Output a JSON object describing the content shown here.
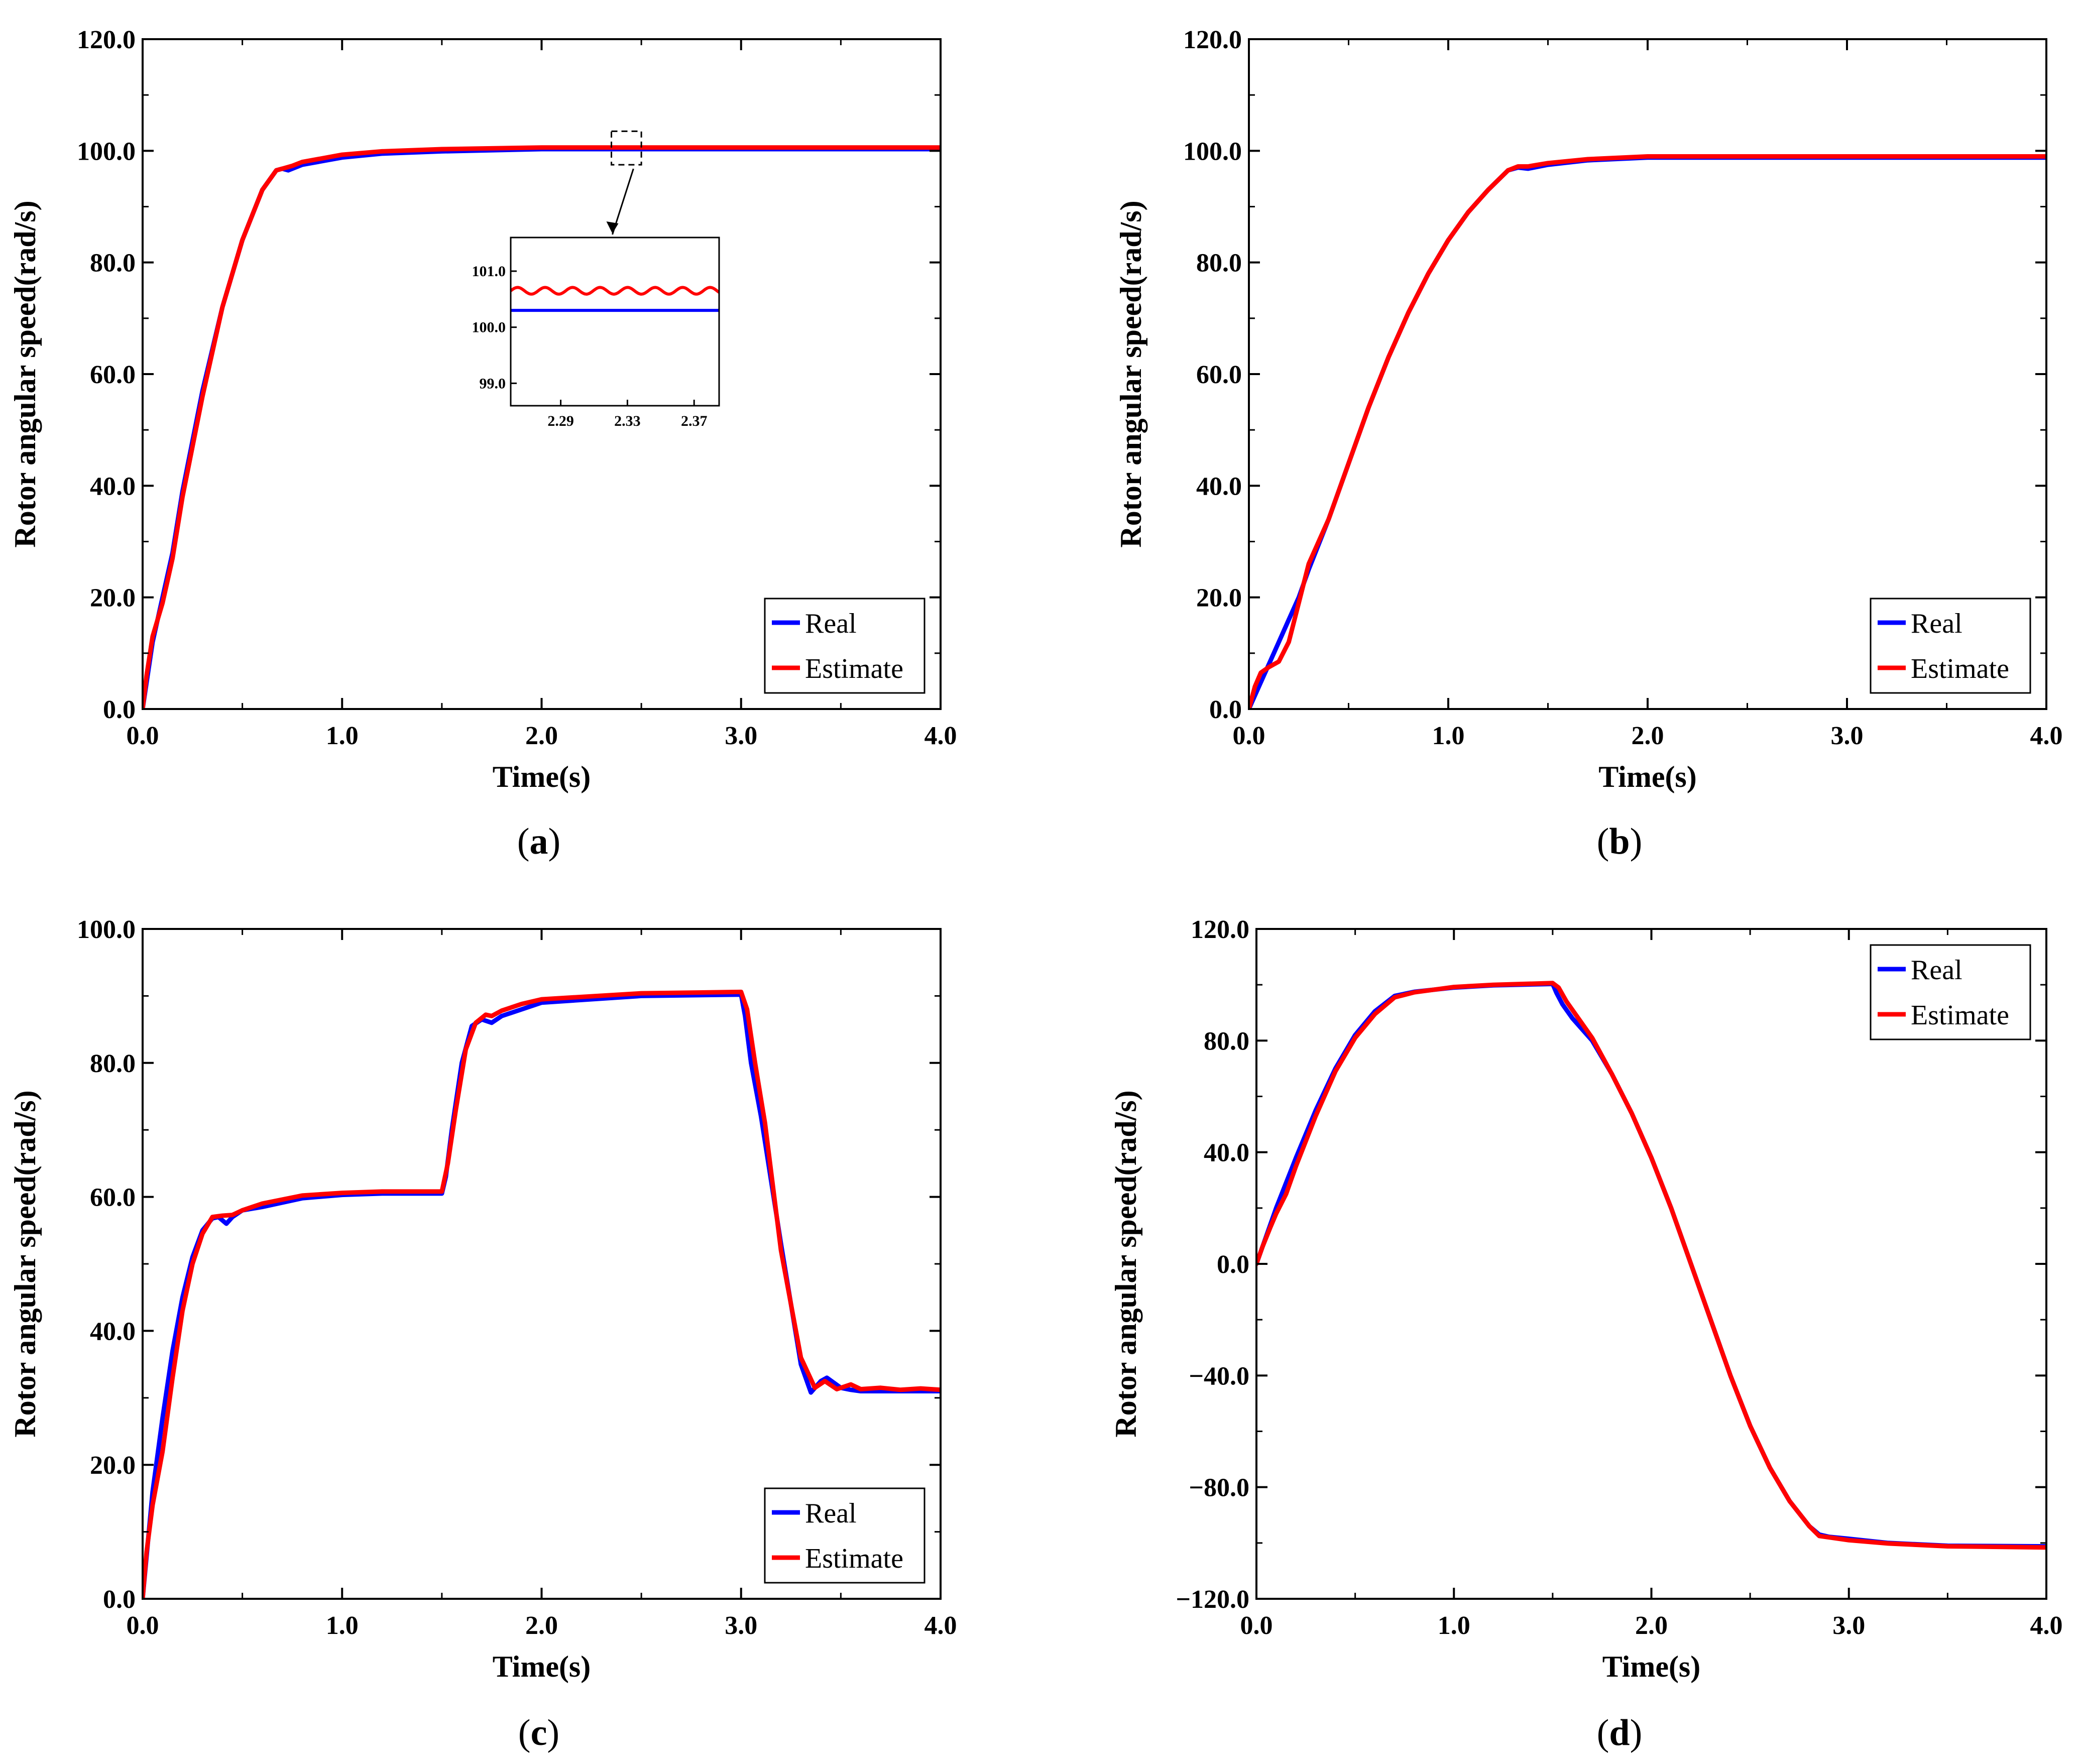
{
  "figure": {
    "colors": {
      "real": "#0000ff",
      "estimate": "#ff0000",
      "axis": "#000000"
    }
  },
  "chart_data": [
    {
      "id": "a",
      "type": "line",
      "caption": "a",
      "xlabel": "Time(s)",
      "ylabel": "Rotor angular speed(rad/s)",
      "xlim": [
        0,
        4
      ],
      "ylim": [
        0,
        120
      ],
      "xticks": [
        0,
        1,
        2,
        3,
        4
      ],
      "xtick_labels": [
        "0.0",
        "1.0",
        "2.0",
        "3.0",
        "4.0"
      ],
      "yticks": [
        0,
        20,
        40,
        60,
        80,
        100,
        120
      ],
      "ytick_labels": [
        "0.0",
        "20.0",
        "40.0",
        "60.0",
        "80.0",
        "100.0",
        "120.0"
      ],
      "legend": {
        "position": "bottom-right",
        "entries": [
          "Real",
          "Estimate"
        ]
      },
      "series": [
        {
          "name": "Real",
          "color": "#0000ff",
          "x": [
            0,
            0.05,
            0.1,
            0.15,
            0.2,
            0.3,
            0.4,
            0.5,
            0.6,
            0.67,
            0.7,
            0.73,
            0.8,
            1.0,
            1.2,
            1.5,
            2.0,
            3.0,
            4.0
          ],
          "y": [
            0,
            12,
            20,
            28,
            39,
            57,
            72,
            84,
            93,
            96.5,
            96.8,
            96.5,
            97.5,
            98.8,
            99.5,
            99.9,
            100.3,
            100.3,
            100.3
          ]
        },
        {
          "name": "Estimate",
          "color": "#ff0000",
          "x": [
            0,
            0.02,
            0.05,
            0.1,
            0.15,
            0.2,
            0.3,
            0.4,
            0.5,
            0.6,
            0.67,
            0.7,
            0.75,
            0.8,
            1.0,
            1.2,
            1.5,
            2.0,
            3.0,
            4.0
          ],
          "y": [
            0,
            6,
            13,
            19,
            27,
            38,
            56,
            72,
            84,
            93,
            96.5,
            96.8,
            97.3,
            98.0,
            99.3,
            99.9,
            100.3,
            100.6,
            100.6,
            100.6
          ]
        }
      ],
      "inset": {
        "xlim": [
          2.26,
          2.385
        ],
        "ylim": [
          98.6,
          101.6
        ],
        "xticks": [
          2.29,
          2.33,
          2.37
        ],
        "xtick_labels": [
          "2.29",
          "2.33",
          "2.37"
        ],
        "yticks": [
          99.0,
          100.0,
          101.0
        ],
        "ytick_labels": [
          "99.0",
          "100.0",
          "101.0"
        ],
        "real_level": 100.3,
        "estimate_level": 100.65,
        "estimate_ripple": 0.06,
        "zoom_region": {
          "x": [
            2.35,
            2.5
          ],
          "y": [
            97.5,
            103.5
          ]
        }
      }
    },
    {
      "id": "b",
      "type": "line",
      "caption": "b",
      "xlabel": "Time(s)",
      "ylabel": "Rotor angular speed(rad/s)",
      "xlim": [
        0,
        4
      ],
      "ylim": [
        0,
        120
      ],
      "xticks": [
        0,
        1,
        2,
        3,
        4
      ],
      "xtick_labels": [
        "0.0",
        "1.0",
        "2.0",
        "3.0",
        "4.0"
      ],
      "yticks": [
        0,
        20,
        40,
        60,
        80,
        100,
        120
      ],
      "ytick_labels": [
        "0.0",
        "20.0",
        "40.0",
        "60.0",
        "80.0",
        "100.0",
        "120.0"
      ],
      "legend": {
        "position": "bottom-right",
        "entries": [
          "Real",
          "Estimate"
        ]
      },
      "series": [
        {
          "name": "Real",
          "color": "#0000ff",
          "x": [
            0,
            0.05,
            0.1,
            0.15,
            0.2,
            0.25,
            0.3,
            0.4,
            0.5,
            0.6,
            0.7,
            0.8,
            0.9,
            1.0,
            1.1,
            1.2,
            1.3,
            1.35,
            1.4,
            1.5,
            1.7,
            2.0,
            3.0,
            4.0
          ],
          "y": [
            0,
            4,
            8,
            12,
            16,
            20,
            25,
            34,
            44,
            54,
            63,
            71,
            78,
            84,
            89,
            93,
            96.5,
            97,
            96.8,
            97.5,
            98.3,
            98.8,
            98.8,
            98.8
          ]
        },
        {
          "name": "Estimate",
          "color": "#ff0000",
          "x": [
            0,
            0.03,
            0.06,
            0.1,
            0.15,
            0.2,
            0.25,
            0.3,
            0.4,
            0.5,
            0.6,
            0.7,
            0.8,
            0.9,
            1.0,
            1.1,
            1.2,
            1.3,
            1.35,
            1.4,
            1.5,
            1.7,
            2.0,
            3.0,
            4.0
          ],
          "y": [
            0,
            4,
            6.5,
            7.5,
            8.5,
            12,
            19,
            26,
            34,
            44,
            54,
            63,
            71,
            78,
            84,
            89,
            93,
            96.5,
            97.2,
            97.2,
            97.8,
            98.5,
            99.0,
            99.0,
            99.0
          ]
        }
      ]
    },
    {
      "id": "c",
      "type": "line",
      "caption": "c",
      "xlabel": "Time(s)",
      "ylabel": "Rotor angular speed(rad/s)",
      "xlim": [
        0,
        4
      ],
      "ylim": [
        0,
        100
      ],
      "xticks": [
        0,
        1,
        2,
        3,
        4
      ],
      "xtick_labels": [
        "0.0",
        "1.0",
        "2.0",
        "3.0",
        "4.0"
      ],
      "yticks": [
        0,
        20,
        40,
        60,
        80,
        100
      ],
      "ytick_labels": [
        "0.0",
        "20.0",
        "40.0",
        "60.0",
        "80.0",
        "100.0"
      ],
      "legend": {
        "position": "bottom-right",
        "entries": [
          "Real",
          "Estimate"
        ]
      },
      "series": [
        {
          "name": "Real",
          "color": "#0000ff",
          "x": [
            0,
            0.05,
            0.1,
            0.15,
            0.2,
            0.25,
            0.3,
            0.35,
            0.38,
            0.42,
            0.45,
            0.5,
            0.6,
            0.8,
            1.0,
            1.2,
            1.5,
            1.52,
            1.55,
            1.6,
            1.65,
            1.7,
            1.75,
            1.8,
            1.9,
            2.0,
            2.5,
            3.0,
            3.02,
            3.05,
            3.1,
            3.2,
            3.3,
            3.35,
            3.4,
            3.43,
            3.5,
            3.55,
            3.6,
            4.0
          ],
          "y": [
            0,
            16,
            27,
            37,
            45,
            51,
            55,
            56.8,
            57,
            56,
            57,
            58,
            58.5,
            59.8,
            60.3,
            60.5,
            60.5,
            63,
            70,
            80,
            85.5,
            86.5,
            86,
            87,
            88,
            89,
            90,
            90.2,
            87,
            80,
            72,
            53,
            35,
            30.8,
            32.5,
            33,
            31.5,
            31.2,
            31,
            31
          ]
        },
        {
          "name": "Estimate",
          "color": "#ff0000",
          "x": [
            0,
            0.02,
            0.05,
            0.1,
            0.15,
            0.2,
            0.25,
            0.3,
            0.35,
            0.4,
            0.45,
            0.5,
            0.6,
            0.8,
            1.0,
            1.2,
            1.5,
            1.53,
            1.57,
            1.62,
            1.67,
            1.72,
            1.75,
            1.8,
            1.9,
            2.0,
            2.5,
            3.0,
            3.03,
            3.07,
            3.12,
            3.2,
            3.3,
            3.37,
            3.42,
            3.48,
            3.55,
            3.6,
            3.7,
            3.8,
            3.9,
            4.0
          ],
          "y": [
            0,
            7,
            14,
            22,
            33,
            43,
            50,
            54.5,
            57,
            57.2,
            57.3,
            58,
            59,
            60.2,
            60.6,
            60.8,
            60.8,
            65,
            73,
            82,
            86,
            87.2,
            87,
            87.8,
            88.8,
            89.5,
            90.4,
            90.6,
            88,
            80,
            71,
            52,
            36,
            31.5,
            32.5,
            31.3,
            32,
            31.3,
            31.5,
            31.2,
            31.4,
            31.2
          ]
        }
      ]
    },
    {
      "id": "d",
      "type": "line",
      "caption": "d",
      "xlabel": "Time(s)",
      "ylabel": "Rotor angular speed(rad/s)",
      "xlim": [
        0,
        4
      ],
      "ylim": [
        -120,
        120
      ],
      "xticks": [
        0,
        1,
        2,
        3,
        4
      ],
      "xtick_labels": [
        "0.0",
        "1.0",
        "2.0",
        "3.0",
        "4.0"
      ],
      "yticks": [
        -120,
        -80,
        -40,
        0,
        40,
        80,
        120
      ],
      "ytick_labels": [
        "−120.0",
        "−80.0",
        "−40.0",
        "0.0",
        "40.0",
        "80.0",
        "120.0"
      ],
      "legend": {
        "position": "top-right",
        "entries": [
          "Real",
          "Estimate"
        ]
      },
      "series": [
        {
          "name": "Real",
          "color": "#0000ff",
          "x": [
            0,
            0.05,
            0.1,
            0.2,
            0.3,
            0.4,
            0.5,
            0.6,
            0.7,
            0.8,
            1.0,
            1.2,
            1.5,
            1.52,
            1.55,
            1.6,
            1.7,
            1.8,
            1.9,
            2.0,
            2.1,
            2.2,
            2.3,
            2.4,
            2.5,
            2.6,
            2.7,
            2.8,
            2.85,
            2.9,
            3.0,
            3.2,
            3.5,
            4.0
          ],
          "y": [
            0,
            10,
            20,
            38,
            55,
            70,
            82,
            90.5,
            96,
            97.5,
            99,
            99.8,
            100.3,
            97,
            93,
            88,
            80,
            68,
            54,
            38,
            20,
            0,
            -20,
            -40,
            -58,
            -73,
            -85,
            -94,
            -97,
            -97.8,
            -98.5,
            -100,
            -101,
            -101.2
          ]
        },
        {
          "name": "Estimate",
          "color": "#ff0000",
          "x": [
            0,
            0.03,
            0.07,
            0.1,
            0.15,
            0.2,
            0.3,
            0.4,
            0.5,
            0.6,
            0.7,
            0.8,
            1.0,
            1.2,
            1.5,
            1.53,
            1.57,
            1.62,
            1.7,
            1.8,
            1.9,
            2.0,
            2.1,
            2.2,
            2.3,
            2.4,
            2.5,
            2.6,
            2.7,
            2.8,
            2.85,
            2.9,
            3.0,
            3.2,
            3.5,
            4.0
          ],
          "y": [
            0,
            6,
            13,
            18,
            25,
            35,
            53,
            69,
            81,
            89.5,
            95.5,
            97.3,
            99.2,
            100,
            100.6,
            99,
            94,
            89,
            81,
            68,
            54,
            38,
            20,
            0,
            -20,
            -40,
            -58,
            -73,
            -85,
            -94,
            -97.5,
            -98,
            -99,
            -100.2,
            -101.2,
            -101.6
          ]
        }
      ]
    }
  ]
}
